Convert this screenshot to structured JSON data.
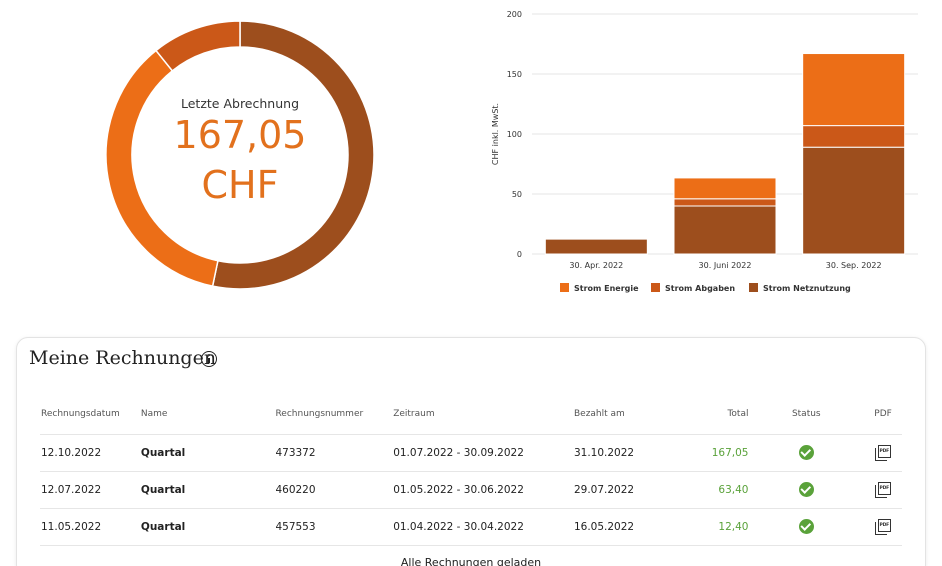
{
  "summary": {
    "label": "Letzte Abrechnung",
    "value": "167,05",
    "currency": "CHF",
    "donut_colors": [
      "#9d4e1d",
      "#ec6e17",
      "#cb5818"
    ]
  },
  "chart_data": {
    "type": "bar",
    "stacked": true,
    "categories": [
      "30. Apr. 2022",
      "30. Juni 2022",
      "30. Sep. 2022"
    ],
    "series": [
      {
        "name": "Strom Netznutzung",
        "color": "#9d4e1d",
        "values": [
          12.4,
          40,
          89
        ]
      },
      {
        "name": "Strom Abgaben",
        "color": "#cb5818",
        "values": [
          0,
          6,
          18
        ]
      },
      {
        "name": "Strom Energie",
        "color": "#ec6e17",
        "values": [
          0,
          17.4,
          60.05
        ]
      }
    ],
    "legend_order": [
      "Strom Energie",
      "Strom Abgaben",
      "Strom Netznutzung"
    ],
    "yticks": [
      "0",
      "50",
      "100",
      "150",
      "200"
    ],
    "ylim": [
      0,
      200
    ],
    "ylabel": "CHF inkl. MwSt.",
    "grid": true,
    "legend": "bottom"
  },
  "invoices": {
    "title": "Meine Rechnungen",
    "columns": [
      "Rechnungsdatum",
      "Name",
      "Rechnungsnummer",
      "Zeitraum",
      "Bezahlt am",
      "Total",
      "Status",
      "PDF"
    ],
    "rows": [
      {
        "date": "12.10.2022",
        "name": "Quartal",
        "number": "473372",
        "period": "01.07.2022 - 30.09.2022",
        "paid": "31.10.2022",
        "total": "167,05"
      },
      {
        "date": "12.07.2022",
        "name": "Quartal",
        "number": "460220",
        "period": "01.05.2022 - 30.06.2022",
        "paid": "29.07.2022",
        "total": "63,40"
      },
      {
        "date": "11.05.2022",
        "name": "Quartal",
        "number": "457553",
        "period": "01.04.2022 - 30.04.2022",
        "paid": "16.05.2022",
        "total": "12,40"
      }
    ],
    "footer": "Alle Rechnungen geladen",
    "status_icon": "check-circle-icon",
    "pdf_icon": "pdf-file-icon",
    "pdf_icon_text": "PDF"
  }
}
